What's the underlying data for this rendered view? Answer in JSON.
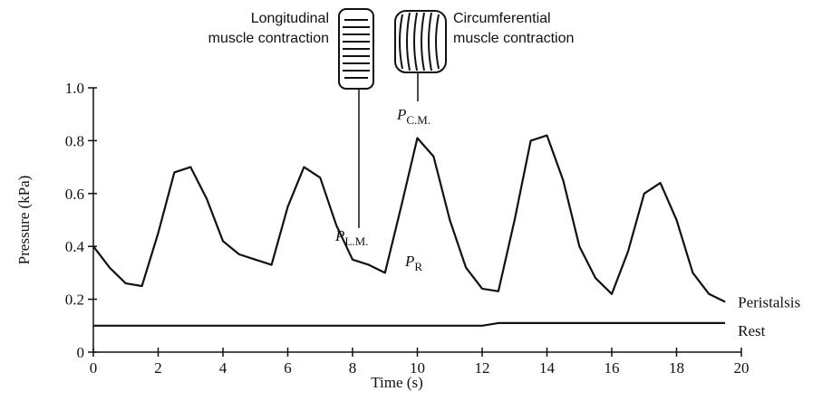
{
  "chart_data": {
    "type": "line",
    "x_label": "Time (s)",
    "y_label": "Pressure (kPa)",
    "x": [
      0,
      0.5,
      1,
      1.5,
      2,
      2.5,
      3,
      3.5,
      4,
      4.5,
      5,
      5.5,
      6,
      6.5,
      7,
      7.5,
      8,
      8.5,
      9,
      9.5,
      10,
      10.5,
      11,
      11.5,
      12,
      12.5,
      13,
      13.5,
      14,
      14.5,
      15,
      15.5,
      16,
      16.5,
      17,
      17.5,
      18,
      18.5,
      19,
      19.5
    ],
    "series": [
      {
        "name": "Peristalsis",
        "color": "#111111",
        "values": [
          0.4,
          0.32,
          0.26,
          0.25,
          0.45,
          0.68,
          0.7,
          0.58,
          0.42,
          0.37,
          0.35,
          0.33,
          0.55,
          0.7,
          0.66,
          0.48,
          0.35,
          0.33,
          0.3,
          0.55,
          0.81,
          0.74,
          0.5,
          0.32,
          0.24,
          0.23,
          0.5,
          0.8,
          0.82,
          0.65,
          0.4,
          0.28,
          0.22,
          0.38,
          0.6,
          0.64,
          0.5,
          0.3,
          0.22,
          0.19
        ]
      },
      {
        "name": "Rest",
        "color": "#111111",
        "values": [
          0.1,
          0.1,
          0.1,
          0.1,
          0.1,
          0.1,
          0.1,
          0.1,
          0.1,
          0.1,
          0.1,
          0.1,
          0.1,
          0.1,
          0.1,
          0.1,
          0.1,
          0.1,
          0.1,
          0.1,
          0.1,
          0.1,
          0.1,
          0.1,
          0.1,
          0.11,
          0.11,
          0.11,
          0.11,
          0.11,
          0.11,
          0.11,
          0.11,
          0.11,
          0.11,
          0.11,
          0.11,
          0.11,
          0.11,
          0.11
        ]
      }
    ],
    "xlim": [
      0,
      20
    ],
    "xticks": [
      0,
      2,
      4,
      6,
      8,
      10,
      12,
      14,
      16,
      18,
      20
    ],
    "ylim": [
      0,
      1
    ],
    "yticks": [
      0,
      0.2,
      0.4,
      0.6,
      0.8,
      {
        "value": 1,
        "label": "1.0"
      }
    ],
    "annotations": [
      {
        "lines": [
          "Longitudinal",
          "muscle contraction"
        ]
      },
      {
        "lines": [
          "Circumferential",
          "muscle contraction"
        ]
      },
      {
        "text": "P",
        "subscript": "L.M."
      },
      {
        "text": "P",
        "subscript": "C.M."
      },
      {
        "text": "P",
        "subscript": "R"
      }
    ]
  }
}
